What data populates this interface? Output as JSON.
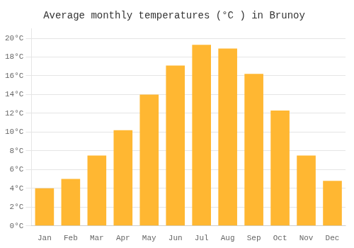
{
  "chart_data": {
    "type": "bar",
    "title": "Average monthly temperatures (°C ) in Brunoy",
    "categories": [
      "Jan",
      "Feb",
      "Mar",
      "Apr",
      "May",
      "Jun",
      "Jul",
      "Aug",
      "Sep",
      "Oct",
      "Nov",
      "Dec"
    ],
    "values": [
      4.0,
      5.0,
      7.5,
      10.2,
      14.0,
      17.1,
      19.3,
      18.9,
      16.2,
      12.3,
      7.5,
      4.8
    ],
    "color": "#FFB732",
    "ylim": [
      0,
      21
    ],
    "yticks": [
      {
        "value": 0,
        "label": "0°C"
      },
      {
        "value": 2,
        "label": "2°C"
      },
      {
        "value": 4,
        "label": "4°C"
      },
      {
        "value": 6,
        "label": "6°C"
      },
      {
        "value": 8,
        "label": "8°C"
      },
      {
        "value": 10,
        "label": "10°C"
      },
      {
        "value": 12,
        "label": "12°C"
      },
      {
        "value": 14,
        "label": "14°C"
      },
      {
        "value": 16,
        "label": "16°C"
      },
      {
        "value": 18,
        "label": "18°C"
      },
      {
        "value": 20,
        "label": "20°C"
      }
    ],
    "grid": true
  }
}
